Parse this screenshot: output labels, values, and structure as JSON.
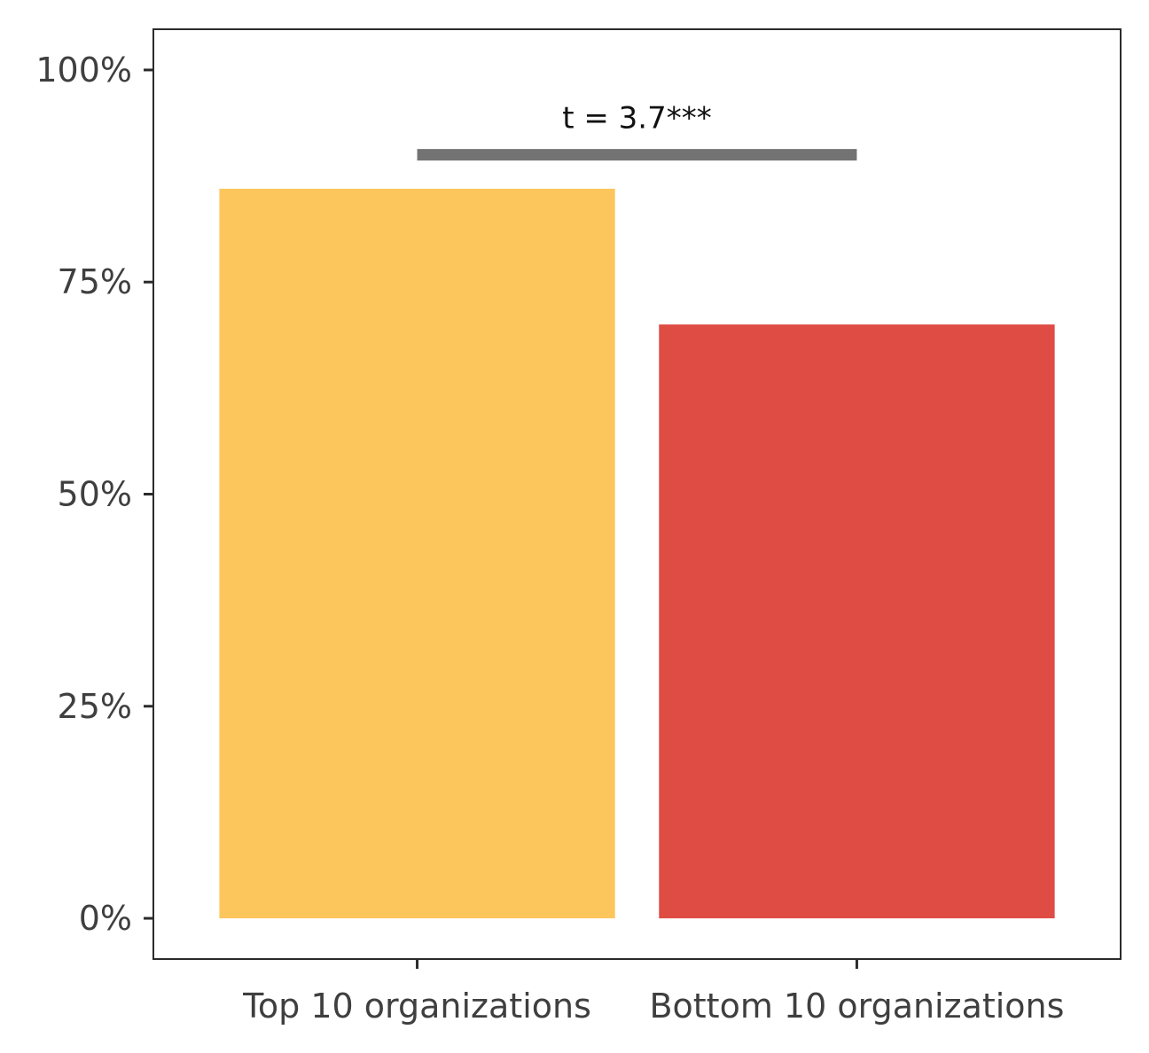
{
  "chart_data": {
    "type": "bar",
    "title": "",
    "xlabel": "",
    "ylabel": "",
    "categories": [
      "Top 10 organizations",
      "Bottom 10 organizations"
    ],
    "values": [
      86,
      70
    ],
    "colors": [
      "#FCC65D",
      "#DE4C44"
    ],
    "ylim": [
      -4.8,
      104.8
    ],
    "yticks": [
      0,
      25,
      50,
      75,
      100
    ],
    "ytick_labels": [
      "0%",
      "25%",
      "50%",
      "75%",
      "100%"
    ],
    "grid": false,
    "legend": "none",
    "annotation": {
      "label": "t = 3.7***",
      "y": 90,
      "from_category": "Top 10 organizations",
      "to_category": "Bottom 10 organizations",
      "color": "#737373"
    }
  }
}
